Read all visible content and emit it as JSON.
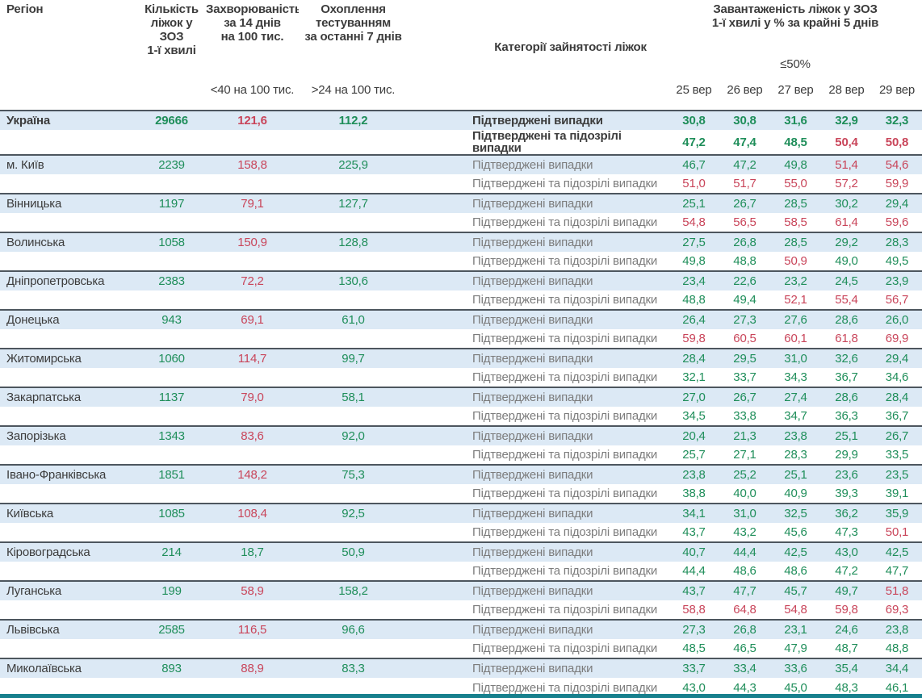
{
  "chart_data": {
    "type": "table",
    "header": {
      "col_region": "Регіон",
      "col_beds": "Кількість\nліжок у ЗОЗ\n1-ї хвилі",
      "col_incidence": "Захворюваність\nза 14 днів\nна 100 тис.",
      "col_testing": "Охоплення\nтестуванням\nза останні 7 днів",
      "col_category": "Категорії зайнятості ліжок",
      "col_load": "Завантаженість ліжок у ЗОЗ\n1-ї хвилі у % за крайні 5 днів",
      "criterion_incidence": "<40 на 100 тис.",
      "criterion_testing": ">24 на 100 тис.",
      "criterion_load": "≤50%",
      "dates": [
        "25 вер",
        "26 вер",
        "27 вер",
        "28 вер",
        "29 вер"
      ]
    },
    "labels": {
      "confirmed": "Підтверджені випадки",
      "confirmed_suspected": "Підтверджені та підозрілі випадки"
    },
    "colors": {
      "green": "#1f8e5a",
      "red": "#c9455a",
      "row_blue": "#dce9f5",
      "block_border": "#4d565e",
      "bottom_bar": "#17808d"
    },
    "rules": {
      "occupancy_red_above": 50,
      "incidence_red_at_or_above": 40,
      "testing_green_at_or_above": 24
    },
    "rows": [
      {
        "name": "Україна",
        "bold": true,
        "beds": "29666",
        "incidence": "121,6",
        "testing": "112,2",
        "confirmed": [
          "30,8",
          "30,8",
          "31,6",
          "32,9",
          "32,3"
        ],
        "confirmed_suspected": [
          "47,2",
          "47,4",
          "48,5",
          "50,4",
          "50,8"
        ]
      },
      {
        "name": "м. Київ",
        "bold": false,
        "beds": "2239",
        "incidence": "158,8",
        "testing": "225,9",
        "confirmed": [
          "46,7",
          "47,2",
          "49,8",
          "51,4",
          "54,6"
        ],
        "confirmed_suspected": [
          "51,0",
          "51,7",
          "55,0",
          "57,2",
          "59,9"
        ]
      },
      {
        "name": "Вінницька",
        "bold": false,
        "beds": "1197",
        "incidence": "79,1",
        "testing": "127,7",
        "confirmed": [
          "25,1",
          "26,7",
          "28,5",
          "30,2",
          "29,4"
        ],
        "confirmed_suspected": [
          "54,8",
          "56,5",
          "58,5",
          "61,4",
          "59,6"
        ]
      },
      {
        "name": "Волинська",
        "bold": false,
        "beds": "1058",
        "incidence": "150,9",
        "testing": "128,8",
        "confirmed": [
          "27,5",
          "26,8",
          "28,5",
          "29,2",
          "28,3"
        ],
        "confirmed_suspected": [
          "49,8",
          "48,8",
          "50,9",
          "49,0",
          "49,5"
        ]
      },
      {
        "name": "Дніпропетровська",
        "bold": false,
        "beds": "2383",
        "incidence": "72,2",
        "testing": "130,6",
        "confirmed": [
          "23,4",
          "22,6",
          "23,2",
          "24,5",
          "23,9"
        ],
        "confirmed_suspected": [
          "48,8",
          "49,4",
          "52,1",
          "55,4",
          "56,7"
        ]
      },
      {
        "name": "Донецька",
        "bold": false,
        "beds": "943",
        "incidence": "69,1",
        "testing": "61,0",
        "confirmed": [
          "26,4",
          "27,3",
          "27,6",
          "28,6",
          "26,0"
        ],
        "confirmed_suspected": [
          "59,8",
          "60,5",
          "60,1",
          "61,8",
          "69,9"
        ]
      },
      {
        "name": "Житомирська",
        "bold": false,
        "beds": "1060",
        "incidence": "114,7",
        "testing": "99,7",
        "confirmed": [
          "28,4",
          "29,5",
          "31,0",
          "32,6",
          "29,4"
        ],
        "confirmed_suspected": [
          "32,1",
          "33,7",
          "34,3",
          "36,7",
          "34,6"
        ]
      },
      {
        "name": "Закарпатська",
        "bold": false,
        "beds": "1137",
        "incidence": "79,0",
        "testing": "58,1",
        "confirmed": [
          "27,0",
          "26,7",
          "27,4",
          "28,6",
          "28,4"
        ],
        "confirmed_suspected": [
          "34,5",
          "33,8",
          "34,7",
          "36,3",
          "36,7"
        ]
      },
      {
        "name": "Запорізька",
        "bold": false,
        "beds": "1343",
        "incidence": "83,6",
        "testing": "92,0",
        "confirmed": [
          "20,4",
          "21,3",
          "23,8",
          "25,1",
          "26,7"
        ],
        "confirmed_suspected": [
          "25,7",
          "27,1",
          "28,3",
          "29,9",
          "33,5"
        ]
      },
      {
        "name": "Івано-Франківська",
        "bold": false,
        "beds": "1851",
        "incidence": "148,2",
        "testing": "75,3",
        "confirmed": [
          "23,8",
          "25,2",
          "25,1",
          "23,6",
          "23,5"
        ],
        "confirmed_suspected": [
          "38,8",
          "40,0",
          "40,9",
          "39,3",
          "39,1"
        ]
      },
      {
        "name": "Київська",
        "bold": false,
        "beds": "1085",
        "incidence": "108,4",
        "testing": "92,5",
        "confirmed": [
          "34,1",
          "31,0",
          "32,5",
          "36,2",
          "35,9"
        ],
        "confirmed_suspected": [
          "43,7",
          "43,2",
          "45,6",
          "47,3",
          "50,1"
        ]
      },
      {
        "name": "Кіровоградська",
        "bold": false,
        "beds": "214",
        "incidence": "18,7",
        "testing": "50,9",
        "confirmed": [
          "40,7",
          "44,4",
          "42,5",
          "43,0",
          "42,5"
        ],
        "confirmed_suspected": [
          "44,4",
          "48,6",
          "48,6",
          "47,2",
          "47,7"
        ]
      },
      {
        "name": "Луганська",
        "bold": false,
        "beds": "199",
        "incidence": "58,9",
        "testing": "158,2",
        "confirmed": [
          "43,7",
          "47,7",
          "45,7",
          "49,7",
          "51,8"
        ],
        "confirmed_suspected": [
          "58,8",
          "64,8",
          "54,8",
          "59,8",
          "69,3"
        ]
      },
      {
        "name": "Львівська",
        "bold": false,
        "beds": "2585",
        "incidence": "116,5",
        "testing": "96,6",
        "confirmed": [
          "27,3",
          "26,8",
          "23,1",
          "24,6",
          "23,8"
        ],
        "confirmed_suspected": [
          "48,5",
          "46,5",
          "47,9",
          "48,7",
          "48,8"
        ]
      },
      {
        "name": "Миколаївська",
        "bold": false,
        "beds": "893",
        "incidence": "88,9",
        "testing": "83,3",
        "confirmed": [
          "33,7",
          "33,4",
          "33,6",
          "35,4",
          "34,4"
        ],
        "confirmed_suspected": [
          "43,0",
          "44,3",
          "45,0",
          "48,3",
          "46,1"
        ]
      }
    ]
  }
}
